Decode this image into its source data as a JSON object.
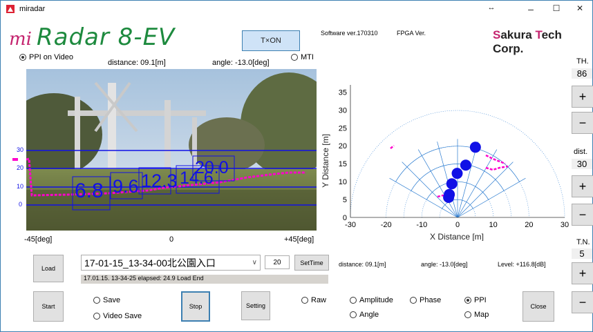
{
  "window": {
    "title": "miradar",
    "controls": {
      "restore": "↔",
      "minimize": "–",
      "maximize": "☐",
      "close": "✕"
    }
  },
  "brand": {
    "mi": "mi",
    "name": "Radar 8-EV",
    "company": "Sakura Tech Corp."
  },
  "tx_button": "T×ON",
  "software_version": "Software ver.170310",
  "fpga_version": "FPGA Ver.",
  "video": {
    "mode_label": "PPI on Video",
    "mti_label": "MTI",
    "distance": "distance: 09.1[m]",
    "angle": "angle: -13.0[deg]",
    "y_ticks": [
      "30",
      "20",
      "10",
      "0"
    ],
    "x_left": "-45[deg]",
    "x_center": "0",
    "x_right": "+45[deg]",
    "detections": [
      "6.8",
      "9.6",
      "12.3",
      "14.6",
      "20.0"
    ]
  },
  "ppi_chart": {
    "ylabel": "Y Distance [m]",
    "xlabel": "X Distance [m]",
    "y_ticks": [
      "35",
      "30",
      "25",
      "20",
      "15",
      "10",
      "5",
      "0"
    ],
    "x_ticks": [
      "-30",
      "-20",
      "-10",
      "0",
      "10",
      "20",
      "30"
    ],
    "points": [
      {
        "x": 5.0,
        "y": 19.6
      },
      {
        "x": 2.3,
        "y": 14.6
      },
      {
        "x": -0.1,
        "y": 12.3
      },
      {
        "x": -1.6,
        "y": 9.4
      },
      {
        "x": -2.3,
        "y": 6.4
      },
      {
        "x": -2.5,
        "y": 5.6
      }
    ]
  },
  "th": {
    "label": "TH.",
    "value": "86"
  },
  "dist": {
    "label": "dist.",
    "value": "30"
  },
  "tn": {
    "label": "T.N.",
    "value": "5"
  },
  "plus": "+",
  "minus": "−",
  "file_select": {
    "value": "17-01-15_13-34-00北公園入口",
    "frames": "20",
    "settime": "SetTime",
    "status": "17.01.15. 13-34-25  elapsed: 24.9  Load End"
  },
  "readout": {
    "distance": "distance: 09.1[m]",
    "angle": "angle: -13.0[deg]",
    "level": "Level: +116.8[dB]"
  },
  "buttons": {
    "load": "Load",
    "start": "Start",
    "stop": "Stop",
    "setting": "Setting",
    "close": "Close"
  },
  "options": {
    "save": "Save",
    "video_save": "Video Save",
    "raw": "Raw",
    "amplitude": "Amplitude",
    "phase": "Phase",
    "ppi": "PPI",
    "angle": "Angle",
    "map": "Map"
  },
  "colors": {
    "accent": "#c4236e",
    "brand_green": "#1d8a3e",
    "target": "#1010e6",
    "trail": "#ff00cc"
  }
}
